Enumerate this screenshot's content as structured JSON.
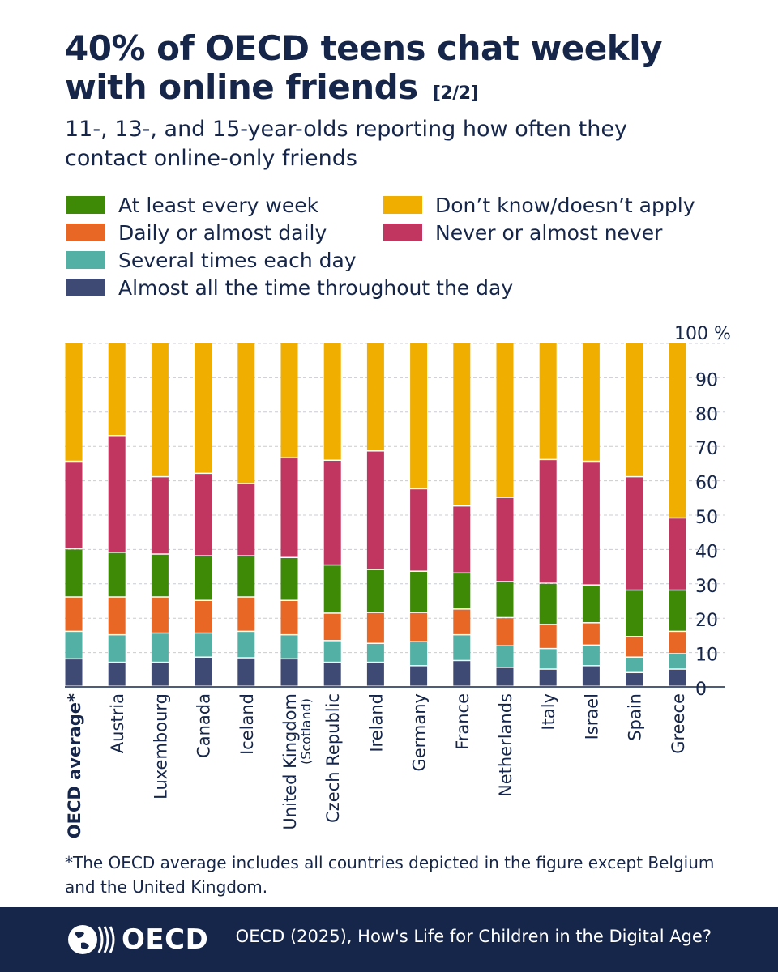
{
  "header": {
    "title": "40% of OECD teens chat weekly with online friends",
    "title_tag": "[2/2]",
    "subtitle": "11-, 13-, and 15-year-olds reporting how often they contact online-only friends"
  },
  "footnote": "*The OECD average includes all countries depicted in the figure except Belgium and the United Kingdom.",
  "footer": {
    "logo_text": "OECD",
    "source": "OECD (2025), How's Life for Children in the Digital Age?"
  },
  "chart_data": {
    "type": "bar",
    "stacked": true,
    "title": "40% of OECD teens chat weekly with online friends",
    "ylabel": "%",
    "ylim": [
      0,
      100
    ],
    "yticks": [
      0,
      10,
      20,
      30,
      40,
      50,
      60,
      70,
      80,
      90,
      100
    ],
    "ytick_top_label": "100 %",
    "grid": true,
    "categories": [
      "OECD average*",
      "Austria",
      "Luxembourg",
      "Canada",
      "Iceland",
      "United Kingdom",
      "Czech Republic",
      "Ireland",
      "Germany",
      "France",
      "Netherlands",
      "Italy",
      "Israel",
      "Spain",
      "Greece"
    ],
    "category_sublabels": [
      "",
      "",
      "",
      "",
      "",
      "(Scotland)",
      "",
      "",
      "",
      "",
      "",
      "",
      "",
      "",
      ""
    ],
    "category_bold": [
      true,
      false,
      false,
      false,
      false,
      false,
      false,
      false,
      false,
      false,
      false,
      false,
      false,
      false,
      false
    ],
    "series": [
      {
        "name": "Almost all the time throughout the day",
        "color": "#3f4a74",
        "values": [
          8,
          7,
          7,
          8.5,
          8.3,
          8,
          7,
          7,
          6,
          7.5,
          5.5,
          5,
          6,
          4,
          5
        ]
      },
      {
        "name": "Several times each day",
        "color": "#52b1a4",
        "values": [
          8,
          8,
          8.5,
          7,
          7.7,
          7,
          6.3,
          5.5,
          7,
          7.5,
          6.3,
          6,
          6,
          4.5,
          4.5
        ]
      },
      {
        "name": "Daily or almost daily",
        "color": "#e86725",
        "values": [
          10,
          11,
          10.5,
          9.5,
          10,
          10,
          8,
          9,
          8.5,
          7.5,
          8.2,
          7,
          6.5,
          6,
          6.5
        ]
      },
      {
        "name": "At least every week",
        "color": "#3e8a06",
        "values": [
          14,
          13,
          12.5,
          13,
          12,
          12.5,
          14,
          12.5,
          12,
          10.5,
          10.5,
          12,
          11,
          13.5,
          12
        ]
      },
      {
        "name": "Never or almost never",
        "color": "#c03661",
        "values": [
          25.5,
          34,
          22.5,
          24,
          21,
          29,
          30.5,
          34.5,
          24,
          19.5,
          24.5,
          36,
          36,
          33,
          21
        ]
      },
      {
        "name": "Don’t know/doesn’t apply",
        "color": "#efae00",
        "values": [
          34.5,
          27,
          39,
          38,
          41,
          33.5,
          34.2,
          31.5,
          42.5,
          47.5,
          45,
          34,
          34.5,
          39,
          51
        ]
      }
    ],
    "legend": {
      "placement": "top",
      "order": [
        "At least every week",
        "Daily or almost daily",
        "Several times each day",
        "Almost all the time throughout the day",
        "Don’t know/doesn’t apply",
        "Never or almost never"
      ]
    }
  }
}
